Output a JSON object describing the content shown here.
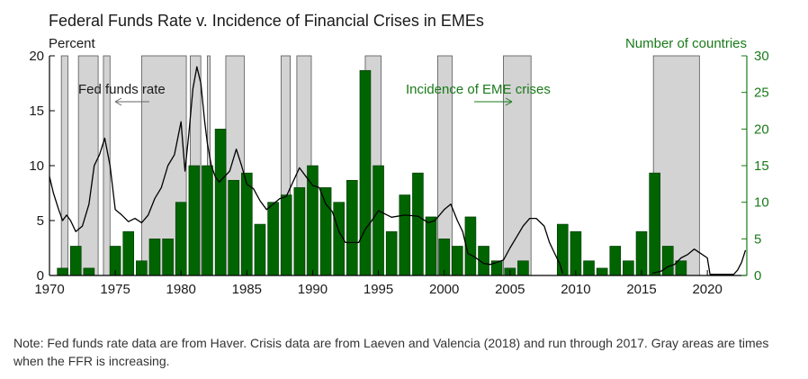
{
  "title": "Federal Funds Rate v. Incidence of Financial Crises in EMEs",
  "note": "Note: Fed funds rate data are from Haver. Crisis data are from Laeven and Valencia (2018) and run through 2017. Gray areas are times when the FFR is increasing.",
  "colors": {
    "bar": "#006400",
    "bar_edge": "#003800",
    "line": "#000000",
    "shade": "#d3d3d3",
    "shade_edge": "#555555",
    "right_axis": "#1a7a1a"
  },
  "chart_data": {
    "type": "bar+line",
    "left_axis_label": "Percent",
    "right_axis_label": "Number of countries",
    "xlim": [
      1970,
      2023
    ],
    "ylim_left": [
      0,
      20
    ],
    "ylim_right": [
      0,
      30
    ],
    "x_ticks": [
      "1970",
      "1975",
      "1980",
      "1985",
      "1990",
      "1995",
      "2000",
      "2005",
      "2010",
      "2015",
      "2020"
    ],
    "y_ticks_left": [
      "0",
      "5",
      "10",
      "15",
      "20"
    ],
    "y_ticks_right": [
      "0",
      "5",
      "10",
      "15",
      "20",
      "25",
      "30"
    ],
    "annotations": {
      "fed_funds": "Fed funds rate",
      "crises": "Incidence of EME crises"
    },
    "shaded_periods": [
      [
        1970.9,
        1971.4
      ],
      [
        1972.2,
        1973.7
      ],
      [
        1974.1,
        1974.6
      ],
      [
        1977.0,
        1980.4
      ],
      [
        1980.7,
        1981.5
      ],
      [
        1982.0,
        1982.2
      ],
      [
        1983.4,
        1984.8
      ],
      [
        1987.6,
        1988.3
      ],
      [
        1988.8,
        1989.9
      ],
      [
        1994.0,
        1995.2
      ],
      [
        1999.5,
        2000.6
      ],
      [
        2004.5,
        2006.6
      ],
      [
        2015.9,
        2019.4
      ]
    ],
    "crises_series": {
      "name": "Incidence of EME crises",
      "years": [
        1971,
        1972,
        1973,
        1975,
        1976,
        1977,
        1978,
        1979,
        1980,
        1981,
        1982,
        1983,
        1984,
        1985,
        1986,
        1987,
        1988,
        1989,
        1990,
        1991,
        1992,
        1993,
        1994,
        1995,
        1996,
        1997,
        1998,
        1999,
        2000,
        2001,
        2002,
        2003,
        2004,
        2005,
        2006,
        2009,
        2010,
        2011,
        2012,
        2013,
        2014,
        2015,
        2016,
        2017,
        2018,
        2019
      ],
      "values": [
        1,
        4,
        1,
        4,
        6,
        2,
        5,
        5,
        10,
        15,
        15,
        20,
        13,
        14,
        7,
        10,
        11,
        12,
        15,
        12,
        10,
        13,
        28,
        15,
        6,
        11,
        14,
        8,
        5,
        4,
        8,
        4,
        2,
        1,
        2,
        7,
        6,
        2,
        1,
        4,
        2,
        6,
        14,
        4,
        2,
        0
      ]
    },
    "fed_funds_series": {
      "name": "Fed funds rate",
      "years": [
        1970.0,
        1970.3,
        1970.7,
        1971.0,
        1971.3,
        1971.6,
        1972.0,
        1972.5,
        1973.0,
        1973.4,
        1973.8,
        1974.2,
        1974.6,
        1975.0,
        1975.5,
        1976.0,
        1976.5,
        1977.0,
        1977.5,
        1978.0,
        1978.5,
        1979.0,
        1979.5,
        1980.0,
        1980.3,
        1980.6,
        1980.9,
        1981.2,
        1981.5,
        1981.8,
        1982.0,
        1982.3,
        1982.6,
        1982.9,
        1983.3,
        1983.7,
        1984.2,
        1984.6,
        1985.0,
        1985.5,
        1986.0,
        1986.5,
        1987.0,
        1987.5,
        1988.0,
        1988.5,
        1989.0,
        1989.5,
        1990.0,
        1990.5,
        1991.0,
        1991.5,
        1992.0,
        1992.5,
        1993.0,
        1993.5,
        1994.0,
        1994.5,
        1995.0,
        1995.5,
        1996.0,
        1997.0,
        1998.0,
        1998.8,
        1999.3,
        2000.0,
        2000.5,
        2001.0,
        2001.4,
        2001.8,
        2002.3,
        2003.0,
        2003.5,
        2004.0,
        2004.5,
        2005.0,
        2005.5,
        2006.0,
        2006.5,
        2007.0,
        2007.6,
        2008.0,
        2008.4,
        2008.8,
        2009.0,
        2015.8,
        2016.5,
        2017.0,
        2017.5,
        2018.0,
        2018.5,
        2019.0,
        2019.5,
        2020.0,
        2020.2,
        2021.0,
        2022.0,
        2022.3,
        2022.6,
        2022.9
      ],
      "values": [
        9.0,
        7.5,
        6.0,
        5.0,
        5.5,
        5.0,
        4.0,
        4.5,
        6.5,
        10.0,
        11.0,
        12.5,
        10.0,
        6.0,
        5.5,
        4.9,
        5.2,
        4.8,
        5.5,
        7.0,
        8.0,
        10.0,
        11.0,
        14.0,
        9.5,
        13.0,
        17.0,
        19.0,
        17.5,
        14.0,
        12.0,
        10.0,
        9.0,
        8.5,
        9.0,
        9.5,
        11.5,
        10.0,
        8.3,
        7.9,
        6.8,
        6.0,
        6.5,
        7.0,
        7.2,
        8.5,
        9.8,
        9.0,
        8.2,
        8.0,
        6.5,
        5.8,
        4.0,
        3.0,
        3.0,
        3.0,
        4.2,
        5.0,
        5.9,
        5.6,
        5.3,
        5.5,
        5.4,
        4.8,
        5.0,
        6.0,
        6.5,
        5.0,
        4.0,
        2.0,
        1.7,
        1.1,
        1.0,
        1.2,
        1.4,
        2.5,
        3.5,
        4.5,
        5.2,
        5.2,
        4.5,
        3.0,
        2.0,
        1.0,
        0.2,
        0.2,
        0.4,
        0.8,
        1.0,
        1.6,
        1.9,
        2.4,
        2.0,
        1.6,
        0.1,
        0.1,
        0.1,
        0.5,
        1.2,
        2.3
      ]
    }
  }
}
